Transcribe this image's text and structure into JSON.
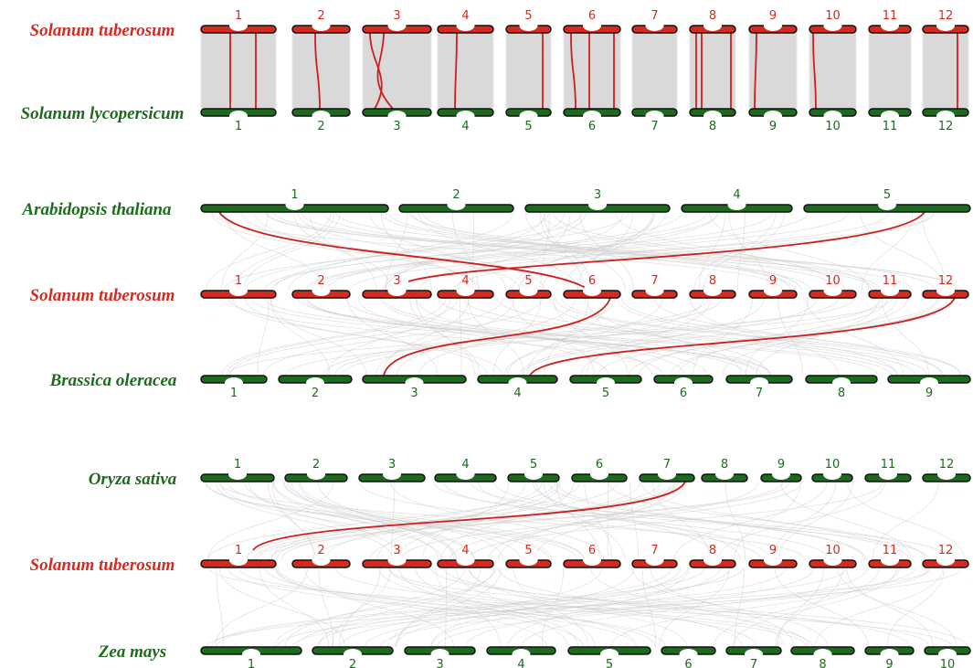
{
  "tracks": [
    {
      "name": "Solanum tuberosum",
      "color": "#d42a20",
      "chromosomes": [
        "1",
        "2",
        "3",
        "4",
        "5",
        "6",
        "7",
        "8",
        "9",
        "10",
        "11",
        "12"
      ]
    },
    {
      "name": "Solanum lycopersicum",
      "color": "#1c6b1c",
      "chromosomes": [
        "1",
        "2",
        "3",
        "4",
        "5",
        "6",
        "7",
        "8",
        "9",
        "10",
        "11",
        "12"
      ]
    },
    {
      "name": "Arabidopsis thaliana",
      "color": "#1c6b1c",
      "chromosomes": [
        "1",
        "2",
        "3",
        "4",
        "5"
      ]
    },
    {
      "name": "Solanum tuberosum",
      "color": "#d42a20",
      "chromosomes": [
        "1",
        "2",
        "3",
        "4",
        "5",
        "6",
        "7",
        "8",
        "9",
        "10",
        "11",
        "12"
      ]
    },
    {
      "name": "Brassica oleracea",
      "color": "#1c6b1c",
      "chromosomes": [
        "1",
        "2",
        "3",
        "4",
        "5",
        "6",
        "7",
        "8",
        "9"
      ]
    },
    {
      "name": "Oryza sativa",
      "color": "#1c6b1c",
      "chromosomes": [
        "1",
        "2",
        "3",
        "4",
        "5",
        "6",
        "7",
        "8",
        "9",
        "10",
        "11",
        "12"
      ]
    },
    {
      "name": "Solanum tuberosum",
      "color": "#d42a20",
      "chromosomes": [
        "1",
        "2",
        "3",
        "4",
        "5",
        "6",
        "7",
        "8",
        "9",
        "10",
        "11",
        "12"
      ]
    },
    {
      "name": "Zea mays",
      "color": "#1c6b1c",
      "chromosomes": [
        "1",
        "2",
        "3",
        "4",
        "5",
        "6",
        "7",
        "8",
        "9",
        "10"
      ]
    }
  ]
}
